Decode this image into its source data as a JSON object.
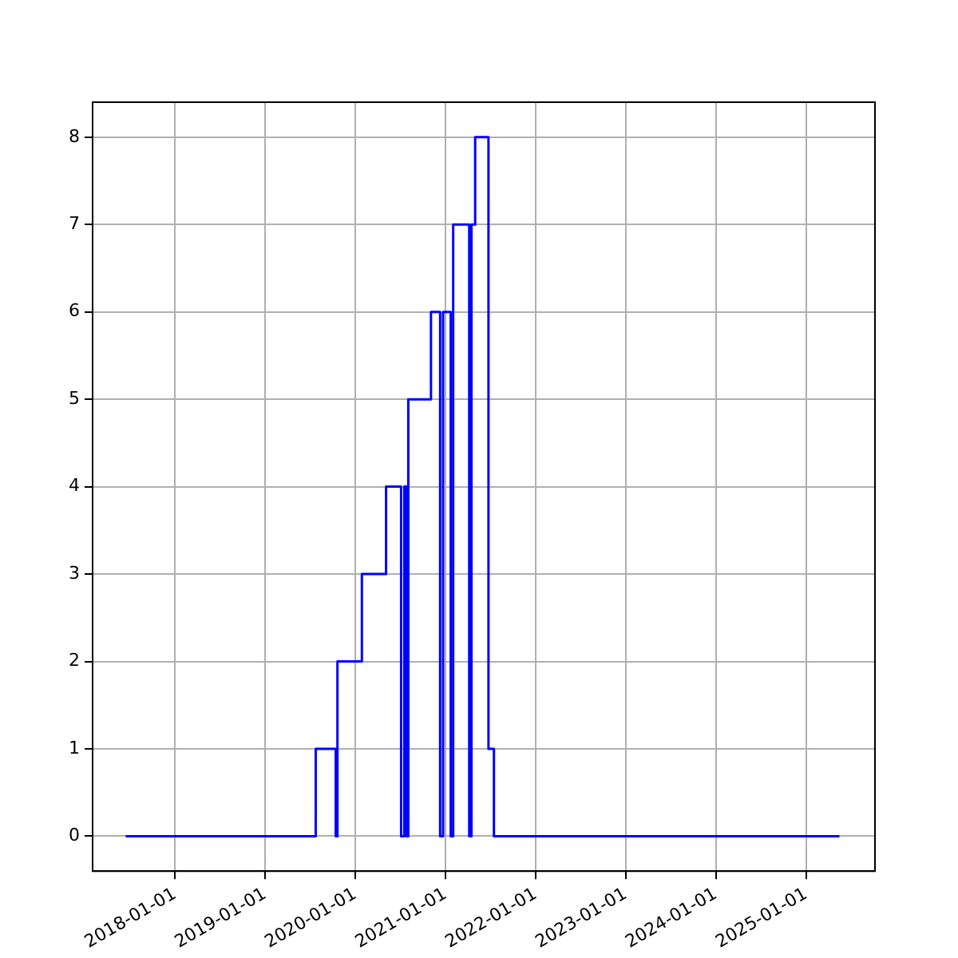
{
  "chart_data": {
    "type": "step",
    "x": [
      "2017-06-15",
      "2019-07-25",
      "2019-10-14",
      "2019-10-21",
      "2020-01-28",
      "2020-05-05",
      "2020-07-05",
      "2020-07-18",
      "2020-07-27",
      "2020-08-03",
      "2020-11-03",
      "2020-12-10",
      "2020-12-22",
      "2021-01-22",
      "2021-02-01",
      "2021-04-07",
      "2021-04-16",
      "2021-05-01",
      "2021-06-24",
      "2021-07-16",
      "2025-05-16"
    ],
    "series": [
      {
        "color": "#0000ff",
        "values": [
          0,
          1,
          0,
          2,
          3,
          4,
          0,
          4,
          0,
          5,
          6,
          0,
          6,
          0,
          7,
          0,
          7,
          8,
          1,
          0,
          0
        ]
      }
    ],
    "xlim": [
      "2017-02-01",
      "2025-10-07"
    ],
    "ylim": [
      -0.4,
      8.4
    ],
    "xticks": [
      "2018-01-01",
      "2019-01-01",
      "2020-01-01",
      "2021-01-01",
      "2022-01-01",
      "2023-01-01",
      "2024-01-01",
      "2025-01-01"
    ],
    "yticks": [
      0,
      1,
      2,
      3,
      4,
      5,
      6,
      7,
      8
    ],
    "grid": true,
    "legend": false
  }
}
